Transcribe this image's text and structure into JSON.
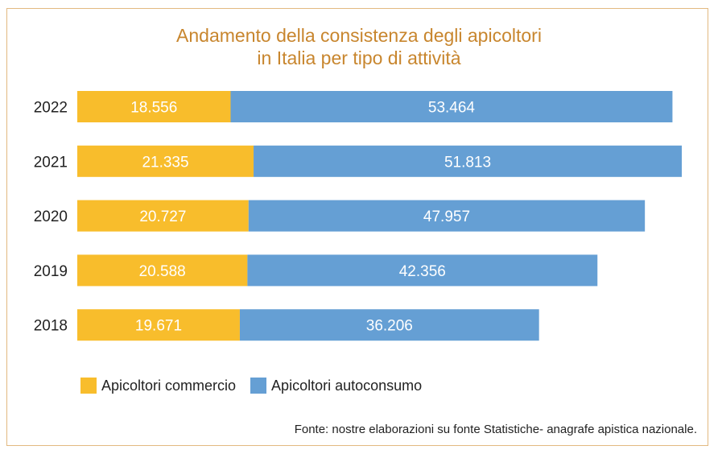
{
  "chart_data": {
    "type": "bar",
    "orientation": "horizontal",
    "stacked": true,
    "title": "Andamento della consistenza degli apicoltori in Italia per tipo di attività",
    "title_lines": [
      "Andamento della consistenza degli apicoltori",
      "in Italia per tipo di attività"
    ],
    "categories": [
      "2022",
      "2021",
      "2020",
      "2019",
      "2018"
    ],
    "series": [
      {
        "name": "Apicoltori commercio",
        "color": "#f8bd2c",
        "values": [
          18556,
          21335,
          20727,
          20588,
          19671
        ],
        "labels": [
          "18.556",
          "21.335",
          "20.727",
          "20.588",
          "19.671"
        ]
      },
      {
        "name": "Apicoltori autoconsumo",
        "color": "#659fd4",
        "values": [
          53464,
          51813,
          47957,
          42356,
          36206
        ],
        "labels": [
          "53.464",
          "51.813",
          "47.957",
          "42.356",
          "36.206"
        ]
      }
    ],
    "xlim": [
      0,
      73148
    ],
    "grid": false,
    "legend_position": "bottom-left",
    "source": "Fonte: nostre elaborazioni su fonte Statistiche- anagrafe apistica nazionale."
  }
}
